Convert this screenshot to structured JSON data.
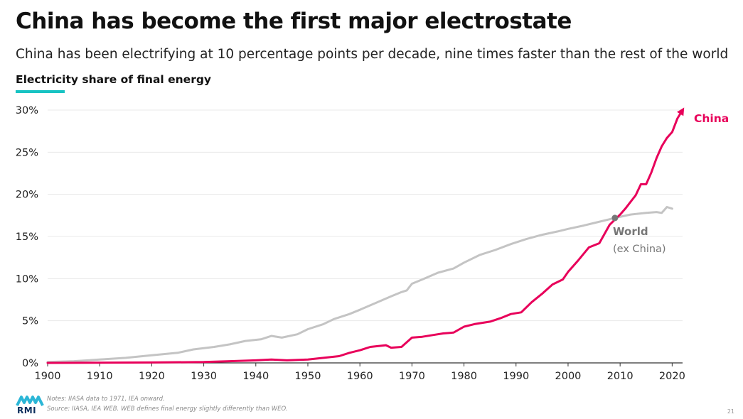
{
  "title": "China has become the first major electrostate",
  "subtitle": "China has been electrifying at 10 percentage points per decade, nine times faster than the rest of the world",
  "chart_label": "Electricity share of final energy",
  "notes": "Notes: IIASA data to 1971, IEA onward.",
  "source": "Source: IIASA, IEA WEB. WEB defines final energy slightly differently than WEO.",
  "logo_text": "RMI",
  "page_number": "21",
  "colors": {
    "china": "#e8005a",
    "world": "#c4c4c4",
    "accent": "#17c3c3",
    "world_label": "#777777"
  },
  "chart_data": {
    "type": "line",
    "xlim": [
      1900,
      2022
    ],
    "ylim": [
      0,
      30
    ],
    "x_ticks": [
      "1900",
      "1910",
      "1920",
      "1930",
      "1940",
      "1950",
      "1960",
      "1970",
      "1980",
      "1990",
      "2000",
      "2010",
      "2020"
    ],
    "y_ticks": [
      "0%",
      "5%",
      "10%",
      "15%",
      "20%",
      "25%",
      "30%"
    ],
    "grid": true,
    "series": [
      {
        "name": "World",
        "name_sub": "(ex China)",
        "points": [
          [
            1900,
            0.1
          ],
          [
            1905,
            0.2
          ],
          [
            1910,
            0.4
          ],
          [
            1915,
            0.6
          ],
          [
            1920,
            0.9
          ],
          [
            1925,
            1.2
          ],
          [
            1928,
            1.6
          ],
          [
            1932,
            1.9
          ],
          [
            1935,
            2.2
          ],
          [
            1938,
            2.6
          ],
          [
            1941,
            2.8
          ],
          [
            1943,
            3.2
          ],
          [
            1945,
            3.0
          ],
          [
            1948,
            3.4
          ],
          [
            1950,
            4.0
          ],
          [
            1953,
            4.6
          ],
          [
            1955,
            5.2
          ],
          [
            1958,
            5.8
          ],
          [
            1960,
            6.3
          ],
          [
            1963,
            7.1
          ],
          [
            1966,
            7.9
          ],
          [
            1968,
            8.4
          ],
          [
            1969,
            8.6
          ],
          [
            1970,
            9.4
          ],
          [
            1972,
            9.9
          ],
          [
            1975,
            10.7
          ],
          [
            1978,
            11.2
          ],
          [
            1980,
            11.9
          ],
          [
            1983,
            12.8
          ],
          [
            1986,
            13.4
          ],
          [
            1989,
            14.1
          ],
          [
            1992,
            14.7
          ],
          [
            1995,
            15.2
          ],
          [
            1998,
            15.6
          ],
          [
            2000,
            15.9
          ],
          [
            2003,
            16.3
          ],
          [
            2005,
            16.6
          ],
          [
            2009,
            17.2
          ],
          [
            2012,
            17.6
          ],
          [
            2015,
            17.8
          ],
          [
            2017,
            17.9
          ],
          [
            2018,
            17.8
          ],
          [
            2019,
            18.5
          ],
          [
            2020,
            18.3
          ]
        ]
      },
      {
        "name": "China",
        "points": [
          [
            1900,
            0.0
          ],
          [
            1920,
            0.05
          ],
          [
            1930,
            0.1
          ],
          [
            1935,
            0.2
          ],
          [
            1940,
            0.3
          ],
          [
            1943,
            0.4
          ],
          [
            1946,
            0.3
          ],
          [
            1950,
            0.4
          ],
          [
            1953,
            0.6
          ],
          [
            1956,
            0.8
          ],
          [
            1958,
            1.2
          ],
          [
            1960,
            1.5
          ],
          [
            1962,
            1.9
          ],
          [
            1965,
            2.1
          ],
          [
            1966,
            1.8
          ],
          [
            1968,
            1.9
          ],
          [
            1970,
            3.0
          ],
          [
            1972,
            3.1
          ],
          [
            1974,
            3.3
          ],
          [
            1976,
            3.5
          ],
          [
            1978,
            3.6
          ],
          [
            1980,
            4.3
          ],
          [
            1982,
            4.6
          ],
          [
            1985,
            4.9
          ],
          [
            1987,
            5.3
          ],
          [
            1989,
            5.8
          ],
          [
            1991,
            6.0
          ],
          [
            1993,
            7.2
          ],
          [
            1995,
            8.2
          ],
          [
            1997,
            9.3
          ],
          [
            1999,
            9.9
          ],
          [
            2000,
            10.8
          ],
          [
            2002,
            12.2
          ],
          [
            2004,
            13.7
          ],
          [
            2006,
            14.2
          ],
          [
            2008,
            16.4
          ],
          [
            2010,
            17.6
          ],
          [
            2011,
            18.3
          ],
          [
            2012,
            19.1
          ],
          [
            2013,
            19.9
          ],
          [
            2014,
            21.2
          ],
          [
            2015,
            21.2
          ],
          [
            2016,
            22.6
          ],
          [
            2017,
            24.3
          ],
          [
            2018,
            25.7
          ],
          [
            2019,
            26.7
          ],
          [
            2020,
            27.4
          ],
          [
            2021,
            29.0
          ],
          [
            2022,
            30.0
          ]
        ]
      }
    ],
    "marker": {
      "series": "World",
      "x": 2009,
      "y": 17.2
    }
  }
}
